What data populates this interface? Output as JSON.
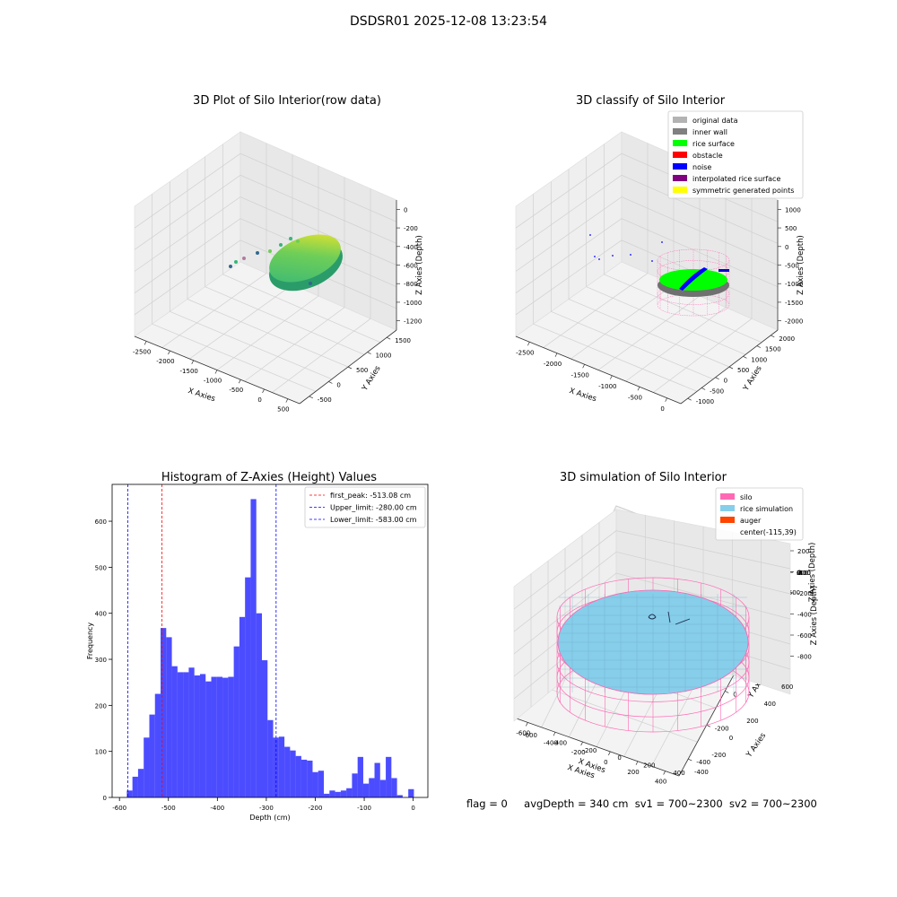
{
  "suptitle": "DSDSR01 2025-12-08 13:23:54",
  "footer": {
    "flag": "flag = 0",
    "avg_depth": "avgDepth = 340 cm",
    "sv1": "sv1 = 700~2300",
    "sv2": "sv2 = 700~2300"
  },
  "chart_data": [
    {
      "type": "scatter",
      "title": "3D Plot of Silo Interior(row data)",
      "xlabel": "X Axies",
      "ylabel": "Y Axies",
      "zlabel": "Z Axies (Depth)",
      "x_ticks": [
        "-2500",
        "-2000",
        "-1500",
        "-1000",
        "-500",
        "0",
        "500"
      ],
      "y_ticks": [
        "-500",
        "0",
        "500",
        "1000",
        "1500"
      ],
      "z_ticks": [
        "0",
        "-200",
        "-400",
        "-600",
        "-800",
        "-1000",
        "-1200"
      ],
      "colormap": [
        "#31688e",
        "#35b779",
        "#6ece58",
        "#fde725"
      ]
    },
    {
      "type": "scatter",
      "title": "3D classify of Silo Interior",
      "xlabel": "X Axies",
      "ylabel": "Y Axies",
      "zlabel": "Z Axies (Depth)",
      "x_ticks": [
        "-2500",
        "-2000",
        "-1500",
        "-1000",
        "-500",
        "0"
      ],
      "y_ticks": [
        "-1000",
        "-500",
        "0",
        "500",
        "1000",
        "1500",
        "2000"
      ],
      "z_ticks": [
        "1000",
        "500",
        "0",
        "-500",
        "-1000",
        "-1500",
        "-2000"
      ],
      "legend": [
        {
          "label": "original data",
          "color": "#b3b3b3"
        },
        {
          "label": "inner wall",
          "color": "#808080"
        },
        {
          "label": "rice surface",
          "color": "#00ff00"
        },
        {
          "label": "obstacle",
          "color": "#ff0000"
        },
        {
          "label": "noise",
          "color": "#0000ff"
        },
        {
          "label": "interpolated rice surface",
          "color": "#800080"
        },
        {
          "label": "symmetric generated points",
          "color": "#ffff00"
        }
      ],
      "legend_position": "top-right"
    },
    {
      "type": "bar",
      "title": "Histogram of Z-Axies (Height) Values",
      "xlabel": "Depth (cm)",
      "ylabel": "Frequency",
      "xlim": [
        -615,
        30
      ],
      "ylim": [
        0,
        680
      ],
      "x_ticks": [
        -600,
        -500,
        -400,
        -300,
        -200,
        -100,
        0
      ],
      "y_ticks": [
        0,
        100,
        200,
        300,
        400,
        500,
        600
      ],
      "bin_start": -585,
      "bin_width": 11.5,
      "values": [
        15,
        45,
        62,
        130,
        180,
        225,
        368,
        348,
        285,
        272,
        272,
        282,
        265,
        268,
        252,
        262,
        262,
        260,
        262,
        328,
        392,
        478,
        648,
        400,
        298,
        168,
        130,
        132,
        110,
        102,
        90,
        82,
        80,
        55,
        58,
        8,
        15,
        12,
        15,
        20,
        52,
        88,
        30,
        42,
        75,
        38,
        88,
        42,
        5,
        0,
        18
      ],
      "bar_color": "#0000ff",
      "vlines": [
        {
          "label": "first_peak: -513.08 cm",
          "x": -513.08,
          "color": "#ff0000"
        },
        {
          "label": "Upper_limit: -280.00 cm",
          "x": -280.0,
          "color": "#0000ff"
        },
        {
          "label": "Lower_limit: -583.00 cm",
          "x": -583.0,
          "color": "#0000ff"
        }
      ],
      "legend_position": "top-right",
      "grid": false
    },
    {
      "type": "scatter",
      "title": "3D simulation of Silo Interior",
      "xlabel": "X Axies",
      "ylabel": "Y Axies",
      "zlabel": "Z Axies (Depth)",
      "x_ticks": [
        "-600",
        "-400",
        "-200",
        "0",
        "200",
        "400"
      ],
      "y_ticks": [
        "-400",
        "-200",
        "0",
        "200",
        "400",
        "600"
      ],
      "z_ticks": [
        "200",
        "0",
        "-200",
        "-400",
        "-600",
        "-800"
      ],
      "legend": [
        {
          "label": "silo",
          "color": "#ff69b4"
        },
        {
          "label": "rice simulation",
          "color": "#87ceeb"
        },
        {
          "label": "auger",
          "color": "#ff4500"
        },
        {
          "label": "center(-115,39)",
          "color": ""
        }
      ],
      "legend_position": "top-right"
    }
  ]
}
